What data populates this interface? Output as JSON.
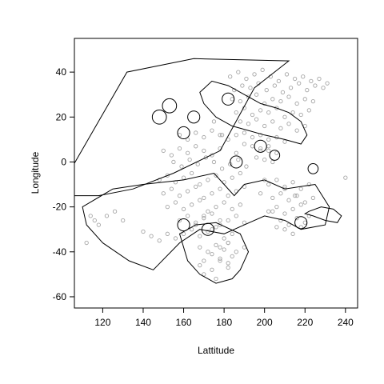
{
  "chart_data": {
    "type": "scatter",
    "title": "",
    "xlabel": "Lattitude",
    "ylabel": "Longitude",
    "xlim": [
      106,
      246
    ],
    "ylim": [
      -65,
      55
    ],
    "x_ticks": [
      120,
      140,
      160,
      180,
      200,
      220,
      240
    ],
    "y_ticks": [
      -60,
      -40,
      -20,
      0,
      20,
      40
    ],
    "grid": false,
    "legend": "none",
    "colors": {
      "points": "#a6a6a6",
      "outline": "#000000",
      "frame": "#000000"
    },
    "series": [
      {
        "kind": "points",
        "x": [
          183,
          187,
          191,
          195,
          199,
          203,
          207,
          211,
          215,
          219,
          223,
          227,
          231,
          185,
          189,
          193,
          197,
          201,
          205,
          209,
          213,
          217,
          221,
          225,
          229,
          184,
          188,
          192,
          196,
          200,
          204,
          208,
          212,
          216,
          220,
          224,
          186,
          190,
          194,
          198,
          202,
          206,
          210,
          214,
          218,
          222,
          188,
          192,
          196,
          200,
          204,
          208,
          212,
          216,
          220,
          186,
          190,
          194,
          198,
          202,
          206,
          210,
          190,
          194,
          198,
          202,
          206,
          196,
          200,
          204,
          175,
          179,
          158,
          162,
          166,
          170,
          174,
          178,
          182,
          150,
          154,
          158,
          162,
          166,
          170,
          174,
          178,
          186,
          155,
          159,
          163,
          167,
          171,
          175,
          179,
          183,
          187,
          191,
          148,
          152,
          156,
          160,
          164,
          168,
          172,
          176,
          180,
          184,
          188,
          150,
          154,
          158,
          162,
          166,
          170,
          174,
          178,
          182,
          186,
          190,
          152,
          156,
          160,
          164,
          168,
          172,
          176,
          180,
          184,
          188,
          158,
          162,
          166,
          170,
          174,
          178,
          182,
          186,
          190,
          160,
          164,
          168,
          172,
          176,
          180,
          184,
          202,
          206,
          210,
          214,
          218,
          222,
          200,
          204,
          208,
          212,
          216,
          220,
          224,
          198,
          202,
          206,
          210,
          214,
          218,
          222,
          204,
          208,
          212,
          216,
          220,
          206,
          210,
          214,
          218,
          140,
          144,
          148,
          152,
          156,
          112,
          116,
          114,
          118,
          122,
          126,
          130,
          166,
          170,
          174,
          178,
          182,
          168,
          172,
          176,
          180,
          184,
          170,
          174,
          178,
          182,
          168,
          174,
          178,
          182,
          170,
          176,
          198,
          202,
          178,
          182,
          186,
          190,
          240,
          210,
          215
        ],
        "y": [
          38,
          40,
          37,
          39,
          41,
          38,
          36,
          39,
          37,
          38,
          36,
          37,
          35,
          32,
          34,
          33,
          35,
          32,
          34,
          31,
          33,
          35,
          32,
          34,
          33,
          28,
          27,
          29,
          30,
          26,
          28,
          27,
          29,
          26,
          28,
          27,
          22,
          24,
          21,
          23,
          22,
          24,
          20,
          22,
          21,
          23,
          18,
          17,
          19,
          16,
          18,
          15,
          17,
          14,
          16,
          12,
          13,
          11,
          12,
          10,
          11,
          9,
          8,
          7,
          6,
          5,
          4,
          2,
          1,
          0,
          18,
          12,
          12,
          10,
          13,
          11,
          14,
          12,
          10,
          5,
          3,
          6,
          4,
          7,
          5,
          3,
          6,
          4,
          0,
          -2,
          1,
          -1,
          2,
          0,
          -3,
          -1,
          1,
          -2,
          -8,
          -6,
          -9,
          -7,
          -5,
          -10,
          -8,
          -6,
          -9,
          -7,
          -5,
          -14,
          -12,
          -15,
          -13,
          -11,
          -16,
          -14,
          -12,
          -15,
          -13,
          -11,
          -20,
          -18,
          -21,
          -19,
          -17,
          -22,
          -20,
          -18,
          -21,
          -19,
          -26,
          -24,
          -27,
          -25,
          -23,
          -28,
          -26,
          -24,
          -27,
          -32,
          -30,
          -33,
          -31,
          -29,
          -34,
          -32,
          -10,
          -8,
          -11,
          -9,
          -12,
          -10,
          -8,
          -16,
          -14,
          -17,
          -15,
          -18,
          -16,
          -14,
          -22,
          -20,
          -23,
          -21,
          -19,
          -24,
          -22,
          -26,
          -28,
          -25,
          -27,
          -29,
          -30,
          -32,
          -29,
          -31,
          -33,
          -35,
          -32,
          -34,
          -36,
          -26,
          -24,
          -28,
          -24,
          -22,
          -26,
          -28,
          -24,
          -30,
          -26,
          -36,
          -38,
          -40,
          -37,
          -39,
          -42,
          -44,
          -41,
          -43,
          -45,
          -46,
          -48,
          -44,
          -47,
          -50,
          -52,
          5,
          7,
          -38,
          -36,
          -40,
          -38,
          -7,
          -12,
          -15
        ]
      },
      {
        "kind": "outline",
        "name": "",
        "x": [
          100,
          132,
          165,
          212,
          195,
          178,
          155,
          135,
          118,
          100,
          100
        ],
        "y": [
          -10,
          40,
          46,
          45,
          33,
          5,
          -5,
          -12,
          -15,
          -15,
          -10
        ]
      },
      {
        "kind": "outline",
        "x": [
          110,
          125,
          140,
          160,
          175,
          180,
          185,
          190,
          200,
          210,
          225,
          232,
          230,
          218,
          210,
          200,
          190,
          180,
          168,
          158,
          145,
          133,
          120,
          112,
          110
        ],
        "y": [
          -20,
          -12,
          -10,
          -8,
          -5,
          -10,
          -15,
          -10,
          -8,
          -12,
          -10,
          -20,
          -28,
          -30,
          -26,
          -24,
          -28,
          -32,
          -30,
          -36,
          -48,
          -44,
          -36,
          -28,
          -20
        ]
      },
      {
        "kind": "outline",
        "x": [
          158,
          166,
          176,
          188,
          192,
          188,
          184,
          176,
          168,
          162,
          158
        ],
        "y": [
          -32,
          -28,
          -27,
          -32,
          -40,
          -48,
          -52,
          -54,
          -50,
          -44,
          -32
        ]
      },
      {
        "kind": "outline",
        "x": [
          168,
          174,
          182,
          190,
          198,
          206,
          212,
          218,
          221,
          218,
          210,
          200,
          192,
          184,
          176,
          170,
          168
        ],
        "y": [
          31,
          36,
          34,
          30,
          26,
          24,
          22,
          18,
          12,
          8,
          10,
          12,
          14,
          16,
          20,
          26,
          31
        ]
      },
      {
        "kind": "outline",
        "x": [
          222,
          228,
          234,
          238,
          236,
          230,
          224,
          220,
          222
        ],
        "y": [
          -22,
          -20,
          -21,
          -24,
          -27,
          -26,
          -24,
          -23,
          -22
        ]
      }
    ],
    "circles": [
      {
        "x": 148,
        "y": 20,
        "r": 3.5
      },
      {
        "x": 153,
        "y": 25,
        "r": 3.5
      },
      {
        "x": 160,
        "y": 13,
        "r": 3
      },
      {
        "x": 165,
        "y": 20,
        "r": 3
      },
      {
        "x": 182,
        "y": 28,
        "r": 3
      },
      {
        "x": 198,
        "y": 7,
        "r": 3
      },
      {
        "x": 205,
        "y": 3,
        "r": 2.5
      },
      {
        "x": 186,
        "y": 0,
        "r": 3
      },
      {
        "x": 224,
        "y": -3,
        "r": 2.5
      },
      {
        "x": 218,
        "y": -27,
        "r": 3
      },
      {
        "x": 160,
        "y": -28,
        "r": 3
      },
      {
        "x": 172,
        "y": -30,
        "r": 3
      }
    ],
    "annotations": []
  }
}
